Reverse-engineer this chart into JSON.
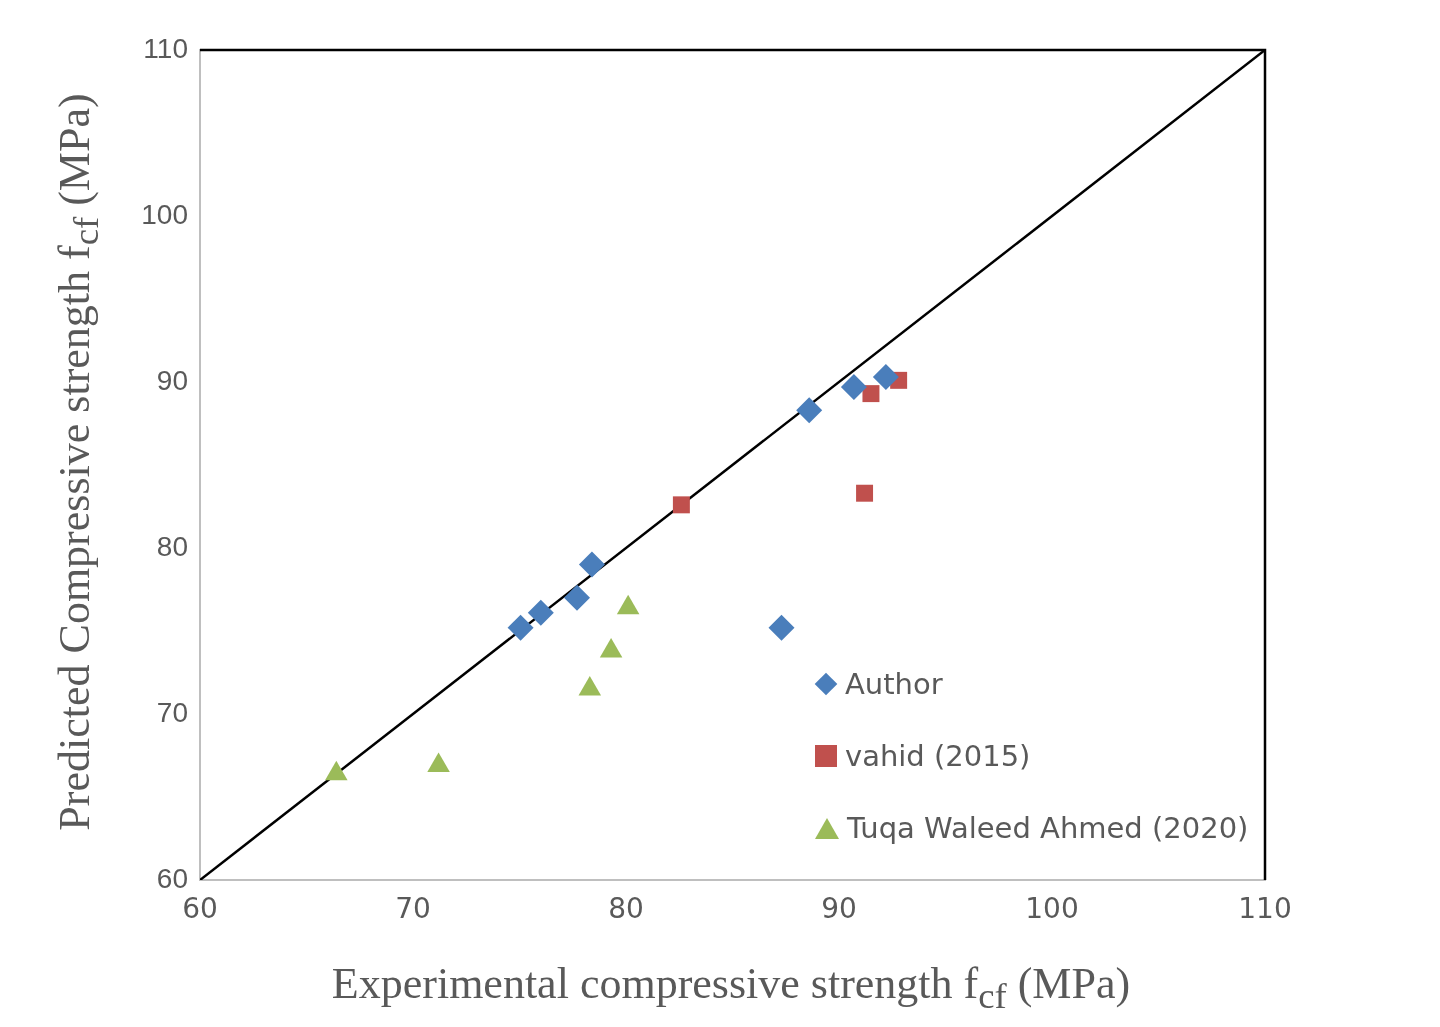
{
  "chart_data": {
    "type": "scatter",
    "xlabel": "Experimental compressive strength f$_{cf}$ (MPa)",
    "ylabel": "Predicted Compressive strength f$_{cf}$ (MPa)",
    "xlim": [
      60,
      110
    ],
    "xticks": [
      60,
      70,
      80,
      90,
      100,
      110
    ],
    "ylim": [
      60,
      110
    ],
    "yticks": [
      60,
      70,
      80,
      90,
      100,
      110
    ],
    "grid": false,
    "legend": "bottom right",
    "series": [
      {
        "name": "Author",
        "color": "#4a7ebb",
        "marker": "diamond",
        "x": [
          75.05,
          76.0,
          77.7,
          78.4,
          87.3,
          88.6,
          90.7,
          92.2
        ],
        "values": [
          75.2,
          76.1,
          77.0,
          79.0,
          75.2,
          88.3,
          89.7,
          90.3
        ]
      },
      {
        "name": "vahid (2015)",
        "color": "#c0504d",
        "marker": "square",
        "x": [
          82.6,
          91.2,
          91.5,
          92.8
        ],
        "values": [
          82.6,
          83.3,
          89.3,
          90.1
        ]
      },
      {
        "name": "Tuqa Waleed Ahmed (2020)",
        "color": "#9bbb59",
        "marker": "triangle",
        "x": [
          66.4,
          71.2,
          78.3,
          79.3,
          80.1
        ],
        "values": [
          66.4,
          66.9,
          71.5,
          73.8,
          76.4
        ]
      },
      {
        "type": "line",
        "color": "#000000",
        "marker": "none",
        "line_style": "solid",
        "x": [
          60,
          110
        ],
        "values": [
          60,
          110
        ]
      }
    ]
  }
}
